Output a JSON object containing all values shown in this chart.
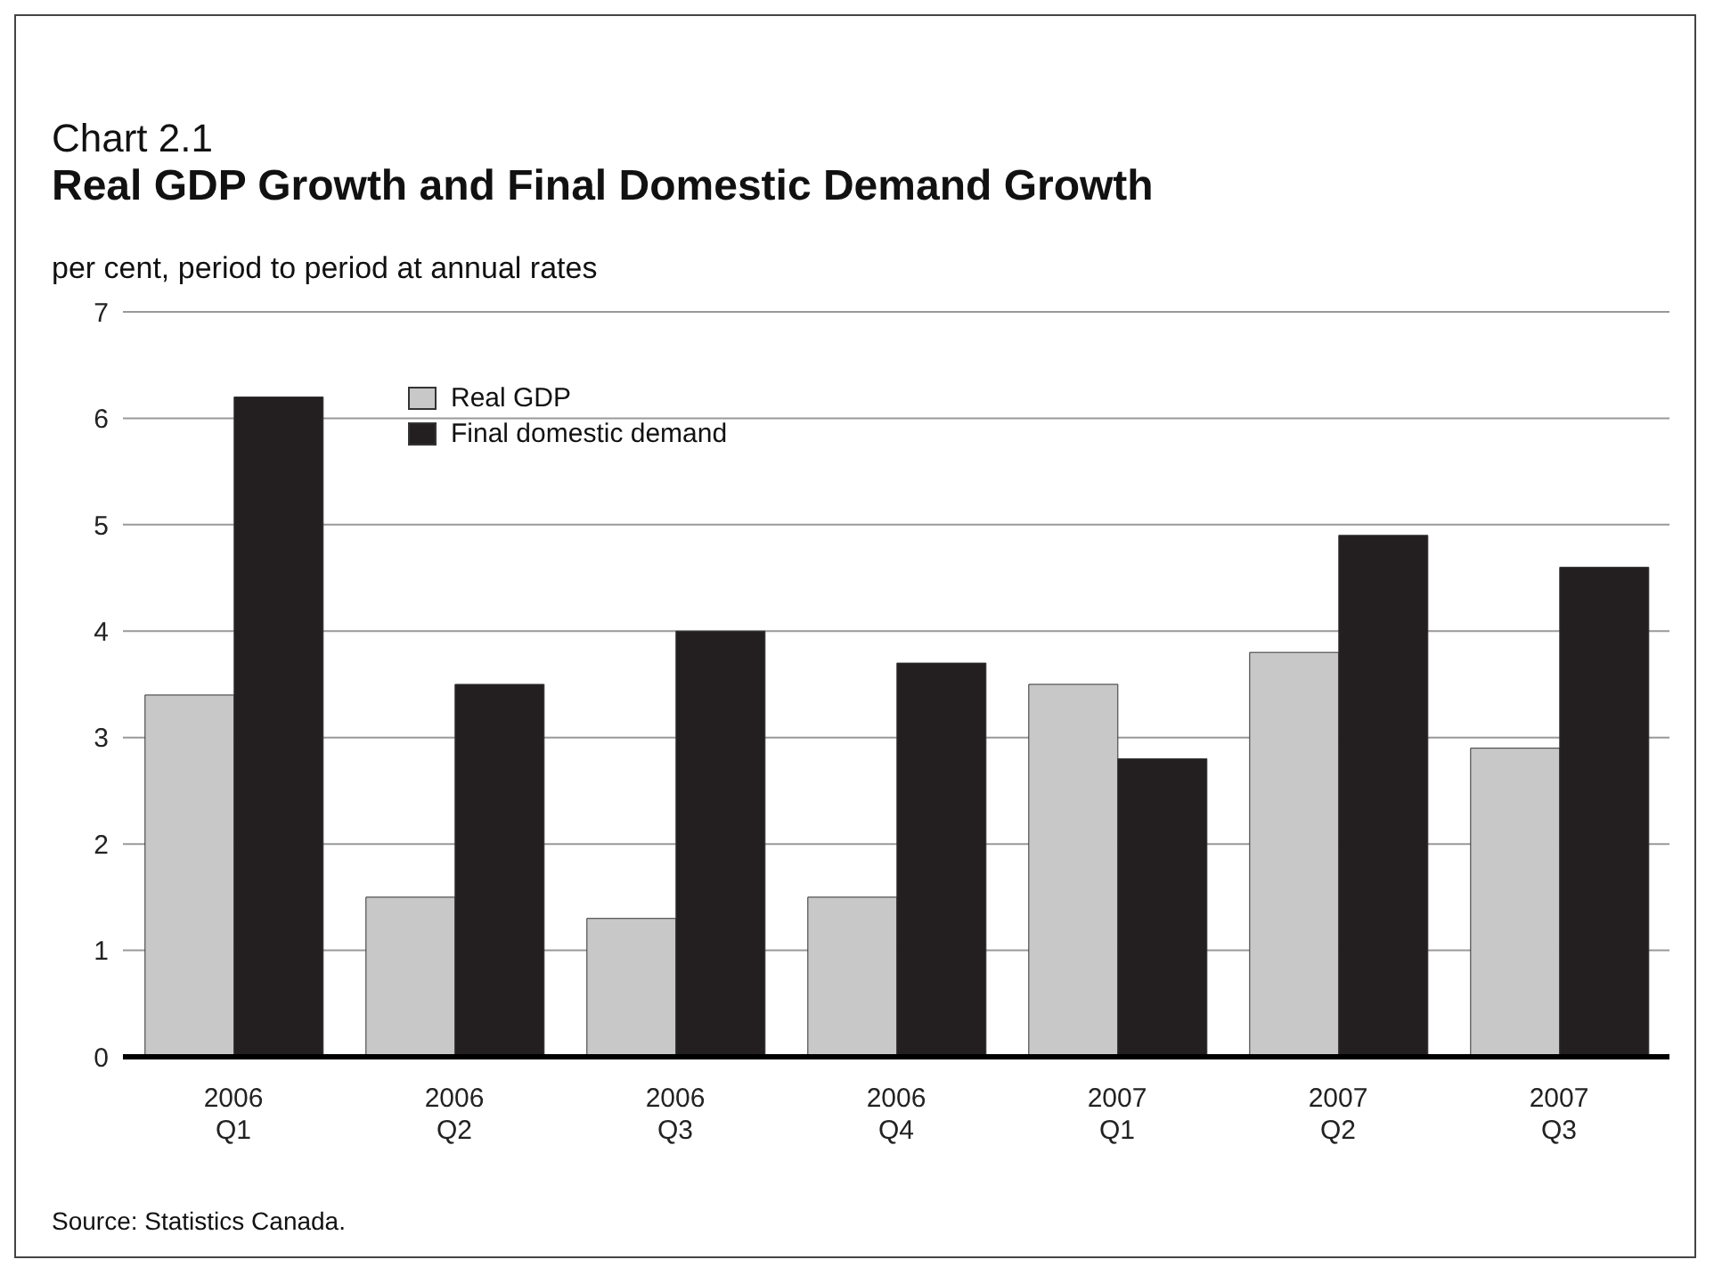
{
  "chart_data": {
    "type": "bar",
    "title": "Chart 2.1",
    "subtitle": "Real GDP Growth and Final Domestic Demand Growth",
    "ylabel": "per cent, period to period at annual rates",
    "categories": [
      "2006 Q1",
      "2006 Q2",
      "2006 Q3",
      "2006 Q4",
      "2007 Q1",
      "2007 Q2",
      "2007 Q3"
    ],
    "series": [
      {
        "name": "Real GDP",
        "color": "#c8c8c8",
        "values": [
          3.4,
          1.5,
          1.3,
          1.5,
          3.5,
          3.8,
          2.9
        ]
      },
      {
        "name": "Final domestic demand",
        "color": "#231f20",
        "values": [
          6.2,
          3.5,
          4.0,
          3.7,
          2.8,
          4.9,
          4.6
        ]
      }
    ],
    "ylim": [
      0,
      7
    ],
    "yticks": [
      0,
      1,
      2,
      3,
      4,
      5,
      6,
      7
    ],
    "grid": "y",
    "legend": "top left",
    "annotations": [
      "Source: Statistics Canada."
    ]
  }
}
